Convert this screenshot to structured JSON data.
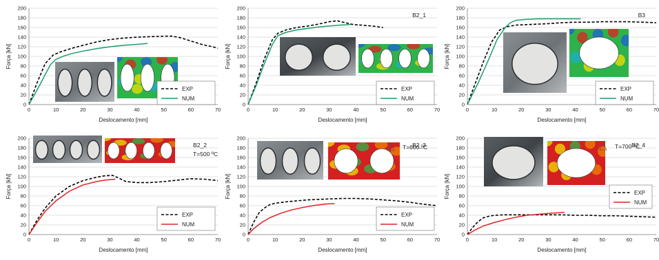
{
  "chart_data": [
    {
      "type": "line",
      "title": "",
      "xlabel": "Deslocamento [mm]",
      "ylabel": "Força [kN]",
      "xlim": [
        0,
        70
      ],
      "ylim": [
        0,
        200
      ],
      "xticks": [
        0,
        10,
        20,
        30,
        40,
        50,
        60,
        70
      ],
      "yticks": [
        0,
        20,
        40,
        60,
        80,
        100,
        120,
        140,
        160,
        180,
        200
      ],
      "legend": "bottom-right",
      "temperature_label": "",
      "series": [
        {
          "name": "EXP",
          "style": "dashed",
          "color": "#000000",
          "x": [
            0,
            3,
            6,
            9,
            12,
            16,
            20,
            25,
            30,
            35,
            40,
            45,
            50,
            53,
            56,
            60,
            64,
            68,
            70
          ],
          "y": [
            0,
            45,
            85,
            103,
            110,
            117,
            123,
            130,
            135,
            138,
            140,
            141,
            142,
            142,
            139,
            132,
            125,
            120,
            117
          ]
        },
        {
          "name": "NUM",
          "style": "solid",
          "color": "#1a9e6a",
          "x": [
            0,
            3,
            6,
            8,
            10,
            13,
            16,
            20,
            25,
            30,
            35,
            40,
            44
          ],
          "y": [
            0,
            30,
            62,
            83,
            94,
            101,
            106,
            111,
            116,
            120,
            123,
            125,
            127
          ]
        }
      ]
    },
    {
      "type": "line",
      "title": "B2_1",
      "xlabel": "Deslocamento [mm]",
      "ylabel": "Força [kN]",
      "xlim": [
        0,
        70
      ],
      "ylim": [
        0,
        200
      ],
      "xticks": [
        0,
        10,
        20,
        30,
        40,
        50,
        60,
        70
      ],
      "yticks": [
        0,
        20,
        40,
        60,
        80,
        100,
        120,
        140,
        160,
        180,
        200
      ],
      "legend": "bottom-right",
      "temperature_label": "",
      "series": [
        {
          "name": "EXP",
          "style": "dashed",
          "color": "#000000",
          "x": [
            0,
            3,
            6,
            9,
            11,
            14,
            18,
            22,
            26,
            30,
            33,
            36,
            39,
            42,
            46,
            50
          ],
          "y": [
            0,
            45,
            95,
            135,
            148,
            155,
            160,
            163,
            167,
            172,
            174,
            170,
            166,
            165,
            163,
            160
          ]
        },
        {
          "name": "NUM",
          "style": "solid",
          "color": "#1a9e6a",
          "x": [
            0,
            3,
            6,
            9,
            11,
            14,
            18,
            22,
            26,
            30,
            34,
            38
          ],
          "y": [
            0,
            40,
            85,
            125,
            143,
            150,
            155,
            158,
            161,
            163,
            165,
            166
          ]
        }
      ]
    },
    {
      "type": "line",
      "title": "B3",
      "xlabel": "Deslocamento [mm]",
      "ylabel": "Força [kN]",
      "xlim": [
        0,
        70
      ],
      "ylim": [
        0,
        200
      ],
      "xticks": [
        0,
        10,
        20,
        30,
        40,
        50,
        60,
        70
      ],
      "yticks": [
        0,
        20,
        40,
        60,
        80,
        100,
        120,
        140,
        160,
        180,
        200
      ],
      "legend": "bottom-right",
      "temperature_label": "",
      "series": [
        {
          "name": "EXP",
          "style": "dashed",
          "color": "#000000",
          "x": [
            0,
            3,
            6,
            9,
            12,
            15,
            18,
            22,
            26,
            30,
            35,
            40,
            45,
            50,
            55,
            60,
            65,
            70
          ],
          "y": [
            0,
            45,
            90,
            130,
            155,
            162,
            165,
            166,
            167,
            168,
            170,
            171,
            171,
            172,
            172,
            172,
            171,
            170
          ]
        },
        {
          "name": "NUM",
          "style": "solid",
          "color": "#1a9e6a",
          "x": [
            0,
            4,
            8,
            11,
            14,
            16,
            18,
            22,
            26,
            30,
            35,
            40,
            42
          ],
          "y": [
            0,
            45,
            95,
            135,
            160,
            170,
            175,
            177,
            178,
            178,
            178,
            178,
            178
          ]
        }
      ]
    },
    {
      "type": "line",
      "title": "B2_2",
      "xlabel": "Deslocamento [mm]",
      "ylabel": "Força [kN]",
      "xlim": [
        0,
        70
      ],
      "ylim": [
        0,
        200
      ],
      "xticks": [
        0,
        10,
        20,
        30,
        40,
        50,
        60,
        70
      ],
      "yticks": [
        0,
        20,
        40,
        60,
        80,
        100,
        120,
        140,
        160,
        180,
        200
      ],
      "legend": "bottom-right",
      "temperature_label": "T=500 ºC",
      "series": [
        {
          "name": "EXP",
          "style": "dashed",
          "color": "#000000",
          "x": [
            0,
            3,
            6,
            10,
            15,
            20,
            25,
            28,
            31,
            33,
            36,
            40,
            45,
            50,
            55,
            60,
            65,
            70
          ],
          "y": [
            0,
            30,
            55,
            80,
            100,
            112,
            119,
            122,
            123,
            118,
            110,
            108,
            108,
            110,
            113,
            116,
            115,
            112
          ]
        },
        {
          "name": "NUM",
          "style": "solid",
          "color": "#e02020",
          "x": [
            0,
            3,
            6,
            10,
            15,
            20,
            25,
            28,
            32
          ],
          "y": [
            0,
            25,
            48,
            70,
            90,
            103,
            110,
            113,
            115
          ]
        }
      ]
    },
    {
      "type": "line",
      "title": "B2_3",
      "xlabel": "Deslocamento [mm]",
      "ylabel": "Força [kN]",
      "xlim": [
        0,
        70
      ],
      "ylim": [
        0,
        200
      ],
      "xticks": [
        0,
        10,
        20,
        30,
        40,
        50,
        60,
        70
      ],
      "yticks": [
        0,
        20,
        40,
        60,
        80,
        100,
        120,
        140,
        160,
        180,
        200
      ],
      "legend": "bottom-right",
      "temperature_label": "T=600 ºC",
      "series": [
        {
          "name": "EXP",
          "style": "dashed",
          "color": "#000000",
          "x": [
            0,
            2,
            4,
            6,
            8,
            10,
            14,
            18,
            22,
            26,
            30,
            35,
            40,
            45,
            50,
            55,
            60,
            65,
            70
          ],
          "y": [
            0,
            25,
            45,
            55,
            62,
            65,
            68,
            70,
            72,
            73,
            74,
            75,
            75,
            74,
            72,
            70,
            67,
            63,
            60
          ]
        },
        {
          "name": "NUM",
          "style": "solid",
          "color": "#e02020",
          "x": [
            0,
            2,
            5,
            8,
            12,
            16,
            20,
            24,
            28,
            30,
            32
          ],
          "y": [
            0,
            12,
            25,
            35,
            44,
            51,
            56,
            60,
            63,
            64,
            64
          ]
        }
      ]
    },
    {
      "type": "line",
      "title": "B2_4",
      "xlabel": "Deslocamento [mm]",
      "ylabel": "Força [kN]",
      "xlim": [
        0,
        70
      ],
      "ylim": [
        0,
        200
      ],
      "xticks": [
        0,
        10,
        20,
        30,
        40,
        50,
        60,
        70
      ],
      "yticks": [
        0,
        20,
        40,
        60,
        80,
        100,
        120,
        140,
        160,
        180,
        200
      ],
      "legend": "right",
      "temperature_label": "T=700 ºC",
      "series": [
        {
          "name": "EXP",
          "style": "dashed",
          "color": "#000000",
          "x": [
            0,
            2,
            4,
            6,
            8,
            10,
            14,
            18,
            22,
            26,
            30,
            35,
            40,
            45,
            50,
            55,
            60,
            65,
            70
          ],
          "y": [
            0,
            15,
            27,
            35,
            38,
            40,
            41,
            41,
            41,
            41,
            41,
            41,
            40,
            40,
            39,
            39,
            38,
            37,
            36
          ]
        },
        {
          "name": "NUM",
          "style": "solid",
          "color": "#e02020",
          "x": [
            0,
            3,
            6,
            10,
            14,
            18,
            22,
            26,
            30,
            33,
            36
          ],
          "y": [
            0,
            10,
            18,
            25,
            31,
            36,
            40,
            42,
            44,
            45,
            46
          ]
        }
      ]
    }
  ]
}
